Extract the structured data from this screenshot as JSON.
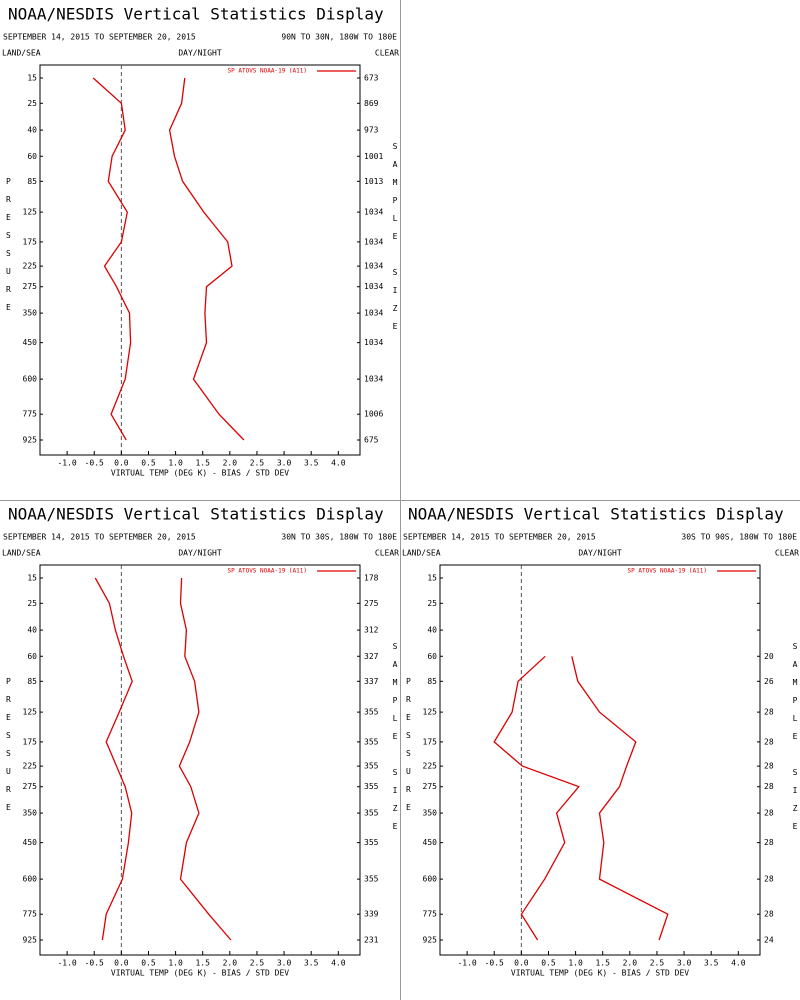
{
  "chart_data": [
    {
      "type": "line",
      "title": "NOAA/NESDIS Vertical Statistics Display",
      "subtitle": "SEPTEMBER 14, 2015 TO SEPTEMBER 20, 2015",
      "region": "90N TO 30N, 180W TO 180E",
      "land_sea": "LAND/SEA",
      "day_night": "DAY/NIGHT",
      "sky": "CLEAR",
      "x_label": "VIRTUAL TEMP (DEG K) - BIAS / STD DEV",
      "y_label": "PRESSURE",
      "y2_label": "SAMPLE SIZE",
      "categories": [
        15,
        25,
        40,
        60,
        85,
        125,
        175,
        225,
        275,
        350,
        450,
        600,
        775,
        925
      ],
      "xlim": [
        -1.5,
        4.4
      ],
      "xticks": [
        {
          "value": -1.0,
          "label": "-1.0"
        },
        {
          "value": -0.5,
          "label": "-0.5"
        },
        {
          "value": 0,
          "label": "0.0"
        },
        {
          "value": 0.5,
          "label": "0.5"
        },
        {
          "value": 1.0,
          "label": "1.0"
        },
        {
          "value": 1.5,
          "label": "1.5"
        },
        {
          "value": 2.0,
          "label": "2.0"
        },
        {
          "value": 2.5,
          "label": "2.5"
        },
        {
          "value": 3.0,
          "label": "3.0"
        },
        {
          "value": 3.5,
          "label": "3.5"
        },
        {
          "value": 4.0,
          "label": "4.0"
        }
      ],
      "series": [
        {
          "name": "SP ATOVS NOAA-19 (A11)",
          "color": "#dd0000",
          "values": [
            -0.52,
            0.0,
            0.07,
            -0.17,
            -0.24,
            0.11,
            0.0,
            -0.31,
            -0.09,
            0.15,
            0.17,
            0.07,
            -0.19,
            0.09
          ],
          "std_dev": [
            1.17,
            1.11,
            0.89,
            0.98,
            1.13,
            1.52,
            1.96,
            2.04,
            1.57,
            1.54,
            1.57,
            1.33,
            1.8,
            2.26
          ]
        }
      ],
      "sample_size": [
        673,
        869,
        973,
        1001,
        1013,
        1034,
        1034,
        1034,
        1034,
        1034,
        1034,
        1034,
        1006,
        675
      ]
    },
    {
      "type": "line",
      "title": "NOAA/NESDIS Vertical Statistics Display",
      "subtitle": "SEPTEMBER 14, 2015 TO SEPTEMBER 20, 2015",
      "region": "30N TO 30S, 180W TO 180E",
      "land_sea": "LAND/SEA",
      "day_night": "DAY/NIGHT",
      "sky": "CLEAR",
      "x_label": "VIRTUAL TEMP (DEG K) - BIAS / STD DEV",
      "y_label": "PRESSURE",
      "y2_label": "SAMPLE SIZE",
      "categories": [
        15,
        25,
        40,
        60,
        85,
        125,
        175,
        225,
        275,
        350,
        450,
        600,
        775,
        925
      ],
      "xlim": [
        -1.5,
        4.4
      ],
      "xticks": [
        {
          "value": -1.0,
          "label": "-1.0"
        },
        {
          "value": -0.5,
          "label": "-0.5"
        },
        {
          "value": 0,
          "label": "0.0"
        },
        {
          "value": 0.5,
          "label": "0.5"
        },
        {
          "value": 1.0,
          "label": "1.0"
        },
        {
          "value": 1.5,
          "label": "1.5"
        },
        {
          "value": 2.0,
          "label": "2.0"
        },
        {
          "value": 2.5,
          "label": "2.5"
        },
        {
          "value": 3.0,
          "label": "3.0"
        },
        {
          "value": 3.5,
          "label": "3.5"
        },
        {
          "value": 4.0,
          "label": "4.0"
        }
      ],
      "series": [
        {
          "name": "SP ATOVS NOAA-19 (A11)",
          "color": "#dd0000",
          "values": [
            -0.48,
            -0.22,
            -0.11,
            0.04,
            0.2,
            -0.04,
            -0.28,
            -0.09,
            0.07,
            0.19,
            0.13,
            0.02,
            -0.28,
            -0.35
          ],
          "std_dev": [
            1.11,
            1.09,
            1.2,
            1.17,
            1.35,
            1.43,
            1.26,
            1.07,
            1.28,
            1.43,
            1.2,
            1.09,
            1.61,
            2.02
          ]
        }
      ],
      "sample_size": [
        178,
        275,
        312,
        327,
        337,
        355,
        355,
        355,
        355,
        355,
        355,
        355,
        339,
        231
      ]
    },
    {
      "type": "line",
      "title": "NOAA/NESDIS Vertical Statistics Display",
      "subtitle": "SEPTEMBER 14, 2015 TO SEPTEMBER 20, 2015",
      "region": "30S TO 90S, 180W TO 180E",
      "land_sea": "LAND/SEA",
      "day_night": "DAY/NIGHT",
      "sky": "CLEAR",
      "x_label": "VIRTUAL TEMP (DEG K) - BIAS / STD DEV",
      "y_label": "PRESSURE",
      "y2_label": "SAMPLE SIZE",
      "categories": [
        15,
        25,
        40,
        60,
        85,
        125,
        175,
        225,
        275,
        350,
        450,
        600,
        775,
        925
      ],
      "xlim": [
        -1.5,
        4.4
      ],
      "xticks": [
        {
          "value": -1.0,
          "label": "-1.0"
        },
        {
          "value": -0.5,
          "label": "-0.5"
        },
        {
          "value": 0,
          "label": "0.0"
        },
        {
          "value": 0.5,
          "label": "0.5"
        },
        {
          "value": 1.0,
          "label": "1.0"
        },
        {
          "value": 1.5,
          "label": "1.5"
        },
        {
          "value": 2.0,
          "label": "2.0"
        },
        {
          "value": 2.5,
          "label": "2.5"
        },
        {
          "value": 3.0,
          "label": "3.0"
        },
        {
          "value": 3.5,
          "label": "3.5"
        },
        {
          "value": 4.0,
          "label": "4.0"
        }
      ],
      "series": [
        {
          "name": "SP ATOVS NOAA-19 (A11)",
          "color": "#dd0000",
          "values": [
            null,
            null,
            null,
            0.44,
            -0.06,
            -0.17,
            -0.5,
            0.02,
            1.06,
            0.65,
            0.8,
            0.43,
            0.0,
            0.3
          ],
          "std_dev": [
            null,
            null,
            null,
            0.93,
            1.04,
            1.44,
            2.11,
            1.94,
            1.81,
            1.44,
            1.52,
            1.44,
            2.7,
            2.54
          ]
        }
      ],
      "sample_size": [
        null,
        null,
        null,
        20,
        26,
        28,
        28,
        28,
        28,
        28,
        28,
        28,
        28,
        24
      ]
    }
  ]
}
